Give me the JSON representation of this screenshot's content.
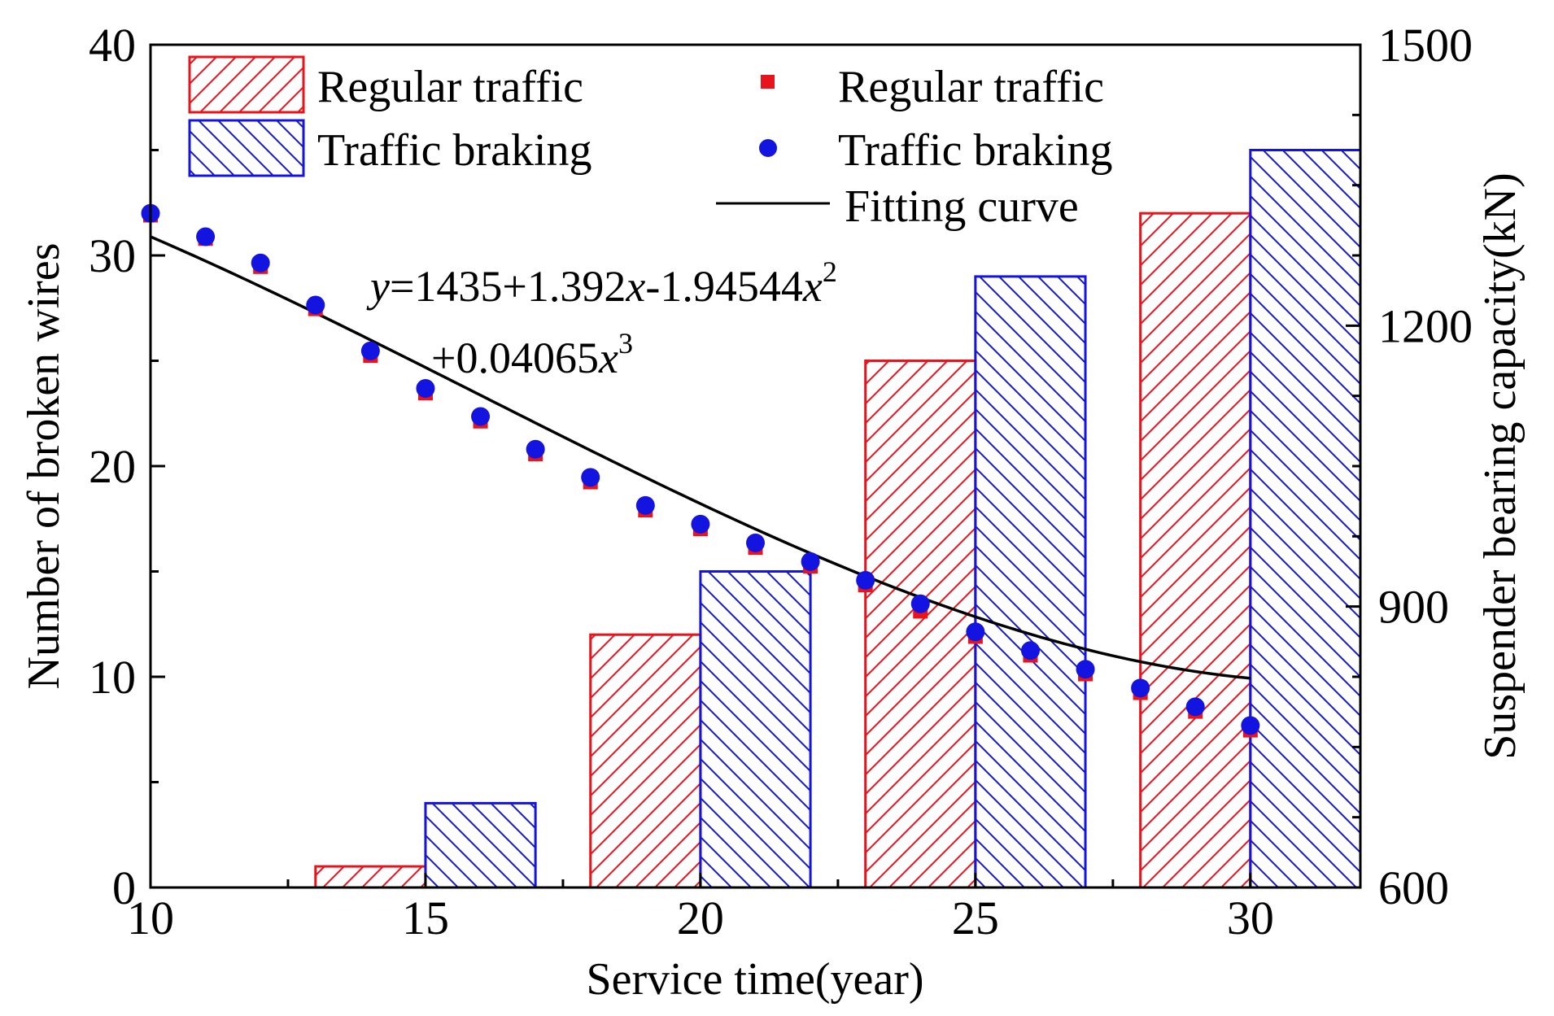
{
  "chart_data": {
    "type": "bar+scatter+line",
    "xlabel": "Service time(year)",
    "ylabel_left": "Number of broken wires",
    "ylabel_right": "Suspender bearing capacity(kN)",
    "xlim": [
      10,
      32
    ],
    "ylim_left": [
      0,
      40
    ],
    "ylim_right": [
      600,
      1500
    ],
    "x_ticks": [
      "10",
      "15",
      "20",
      "25",
      "30"
    ],
    "y_left_ticks": [
      "0",
      "10",
      "20",
      "30",
      "40"
    ],
    "y_right_ticks": [
      "600",
      "900",
      "1200",
      "1500"
    ],
    "bar_groups": [
      15,
      20,
      25,
      30
    ],
    "bar_series": [
      {
        "name": "Regular traffic",
        "color": "#e8141b",
        "hatch": "forward",
        "values": [
          1,
          12,
          25,
          32
        ]
      },
      {
        "name": "Traffic braking",
        "color": "#1414e0",
        "hatch": "backward",
        "values": [
          4,
          15,
          29,
          35
        ]
      }
    ],
    "scatter_series": [
      {
        "name": "Regular traffic",
        "color": "#e8141b",
        "marker": "square",
        "x": [
          10,
          11,
          12,
          13,
          14,
          15,
          16,
          17,
          18,
          19,
          20,
          21,
          22,
          23,
          24,
          25,
          26,
          27,
          28,
          29,
          30
        ],
        "y": [
          1318,
          1293,
          1263,
          1218,
          1168,
          1128,
          1098,
          1063,
          1033,
          1003,
          983,
          963,
          943,
          923,
          895,
          868,
          848,
          828,
          808,
          788,
          768
        ]
      },
      {
        "name": "Traffic braking",
        "color": "#1414e0",
        "marker": "circle",
        "x": [
          10,
          11,
          12,
          13,
          14,
          15,
          16,
          17,
          18,
          19,
          20,
          21,
          22,
          23,
          24,
          25,
          26,
          27,
          28,
          29,
          30
        ],
        "y": [
          1320,
          1295,
          1267,
          1222,
          1173,
          1133,
          1103,
          1068,
          1038,
          1008,
          988,
          968,
          948,
          928,
          903,
          873,
          853,
          833,
          813,
          793,
          773
        ]
      }
    ],
    "fit_curve": {
      "name": "Fitting curve",
      "color": "#000000",
      "coefficients": [
        1435,
        1.392,
        -1.94544,
        0.04065
      ],
      "x_range": [
        10,
        30
      ]
    },
    "equation_line1": {
      "y": "y",
      "eq": "=1435+1.392",
      "x1": "x",
      "mid": "-1.94544",
      "x2": "x",
      "pow2": "2"
    },
    "equation_line2": {
      "lead": "+0.04065",
      "x": "x",
      "pow3": "3"
    }
  }
}
